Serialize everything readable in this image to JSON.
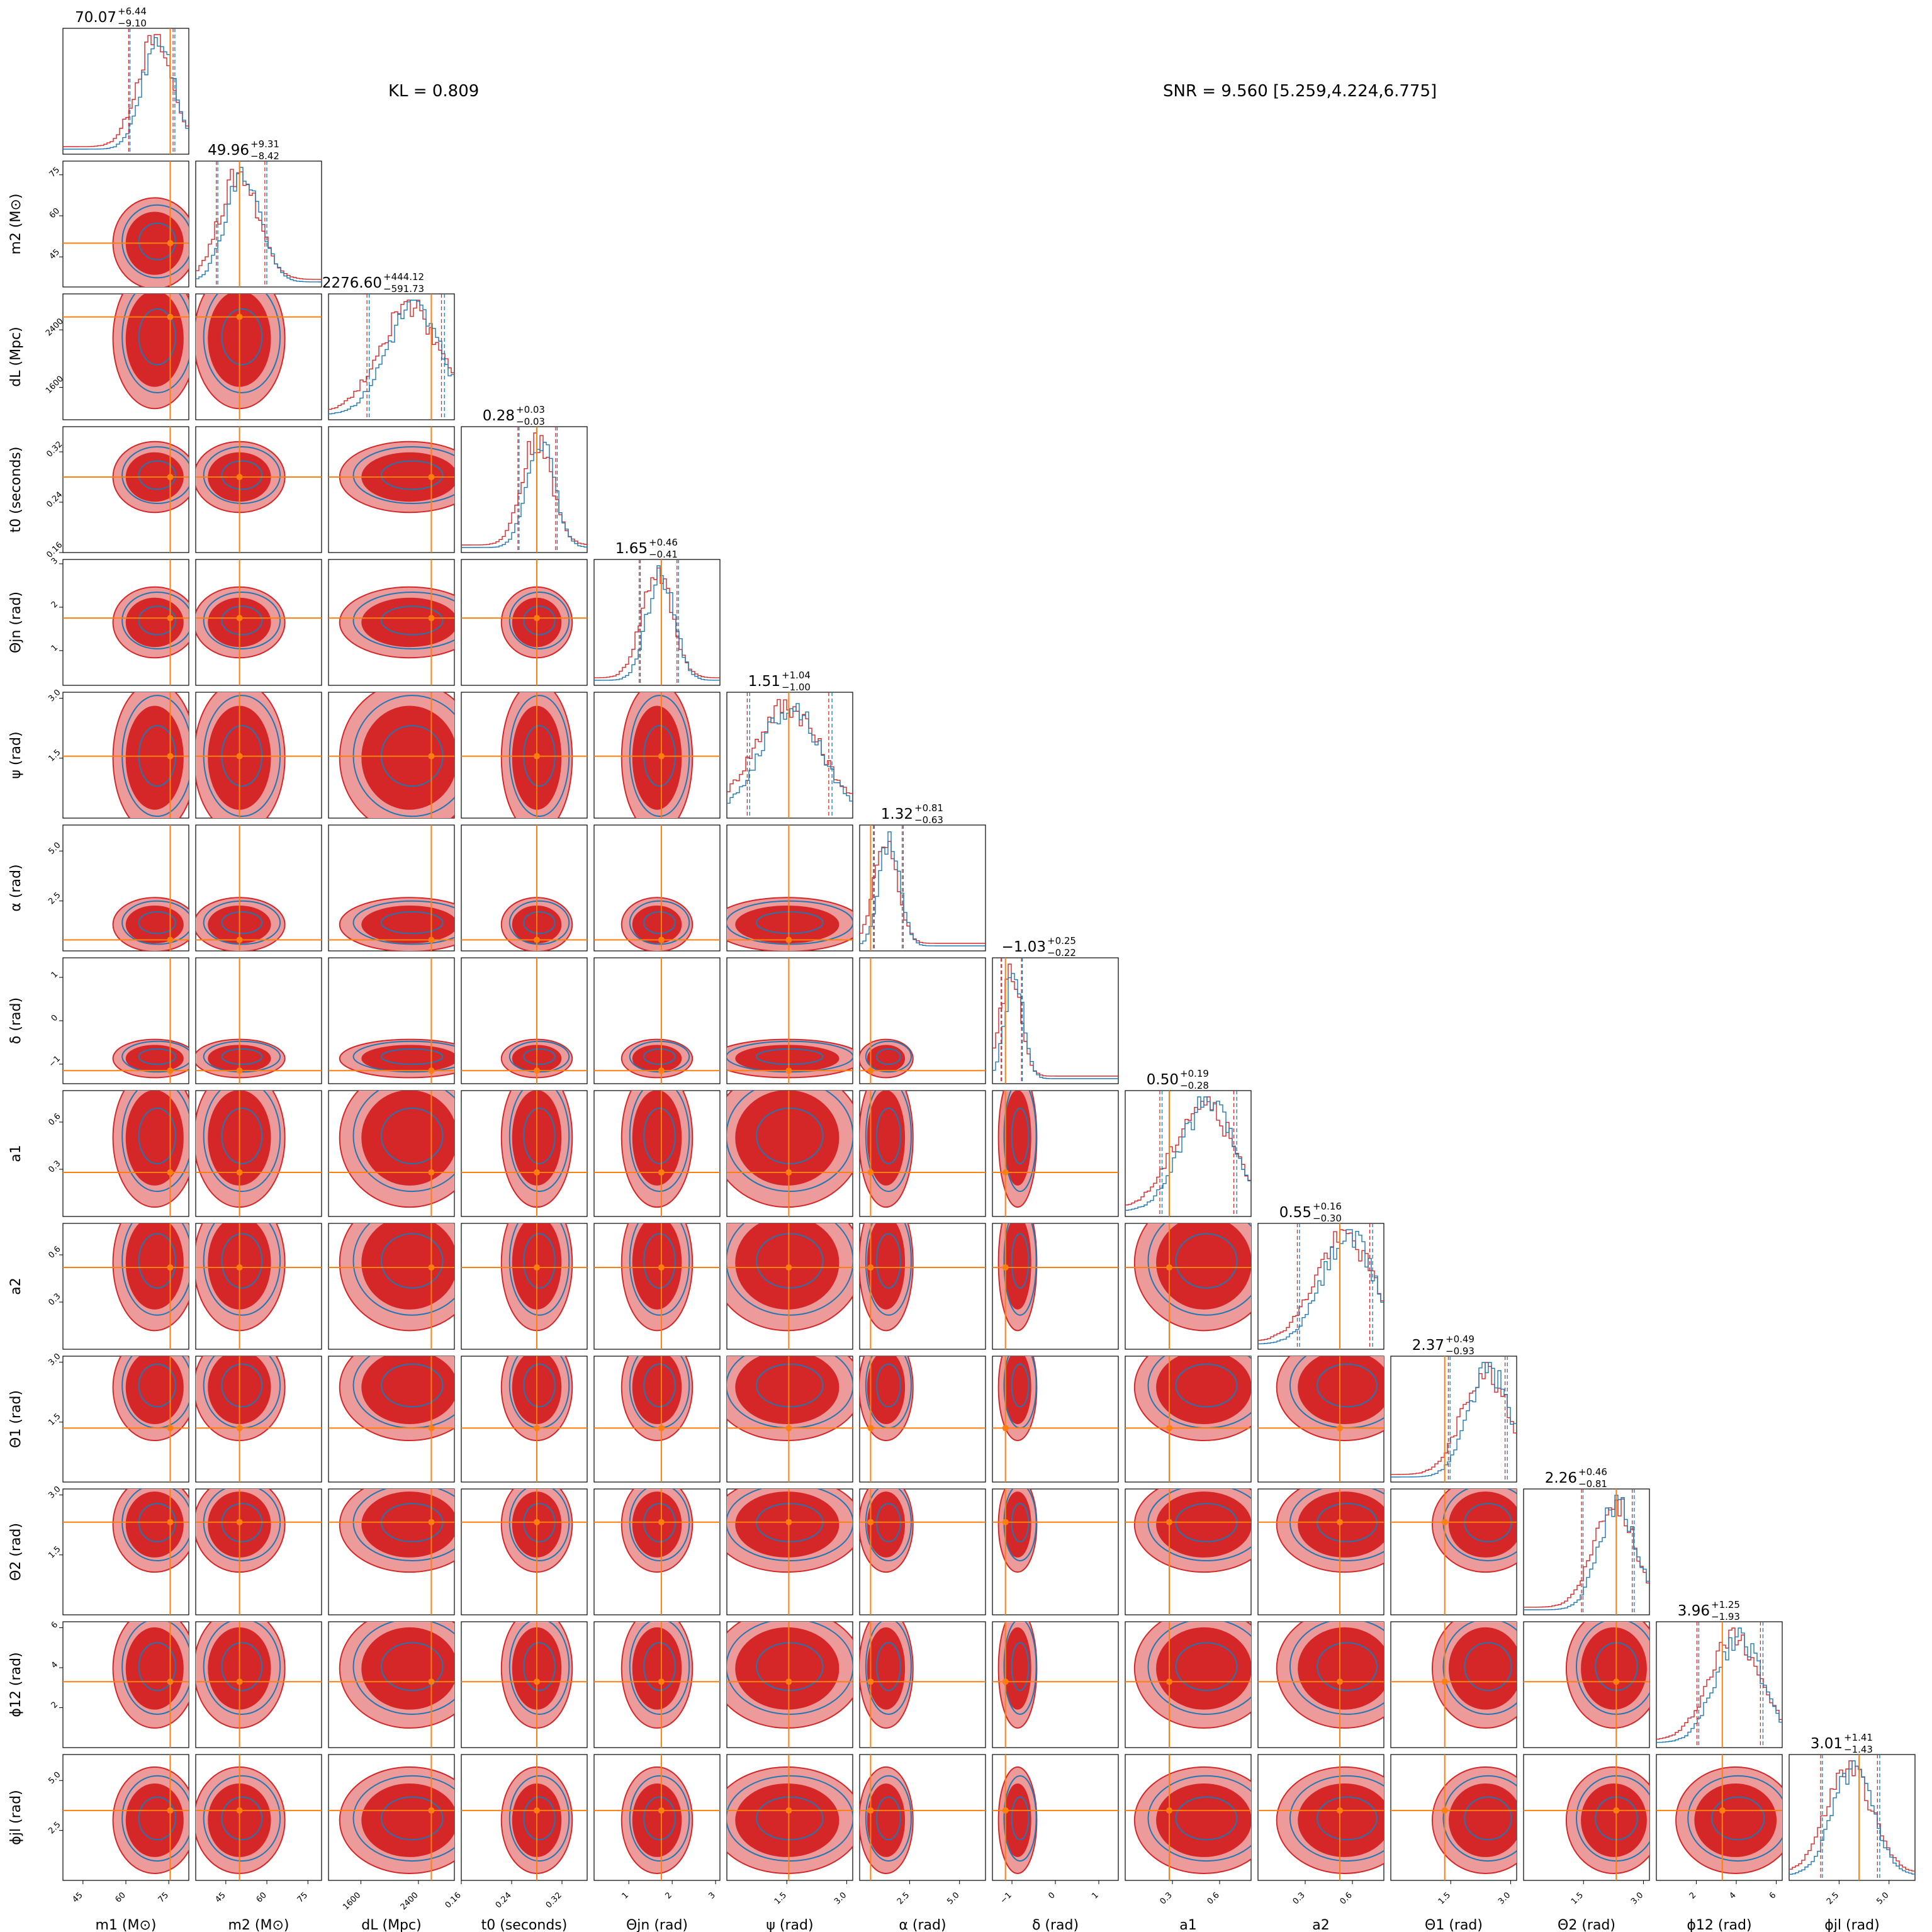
{
  "header": {
    "kl_text": "KL = 0.809",
    "snr_text": "SNR = 9.560 [5.259,4.224,6.775]"
  },
  "colors": {
    "red": "#d62728",
    "red_light": "#ec9a9a",
    "blue": "#1f77b4",
    "orange": "#ff7f0e"
  },
  "chart_data": {
    "type": "corner",
    "parameters": [
      {
        "label": "m1 (M⊙)",
        "injected": 75.5,
        "range": [
          38,
          82
        ],
        "ticks": [
          "45",
          "60",
          "75"
        ],
        "median": "70.07",
        "plus": "+6.44",
        "minus": "−9.10"
      },
      {
        "label": "m2 (M⊙)",
        "injected": 50.0,
        "range": [
          34,
          80
        ],
        "ticks": [
          "45",
          "60",
          "75"
        ],
        "median": "49.96",
        "plus": "+9.31",
        "minus": "−8.42"
      },
      {
        "label": "dL (Mpc)",
        "injected": 2580,
        "range": [
          1150,
          2900
        ],
        "ticks": [
          "1600",
          "2400"
        ],
        "median": "2276.60",
        "plus": "+444.12",
        "minus": "−591.73"
      },
      {
        "label": "t0 (seconds)",
        "injected": 0.28,
        "range": [
          0.16,
          0.36
        ],
        "ticks": [
          "0.16",
          "0.24",
          "0.32"
        ],
        "median": "0.28",
        "plus": "+0.03",
        "minus": "−0.03"
      },
      {
        "label": "Θjn (rad)",
        "injected": 1.75,
        "range": [
          0.2,
          3.1
        ],
        "ticks": [
          "1",
          "2",
          "3"
        ],
        "median": "1.65",
        "plus": "+0.46",
        "minus": "−0.41"
      },
      {
        "label": "ψ (rad)",
        "injected": 1.55,
        "range": [
          0.0,
          3.15
        ],
        "ticks": [
          "1.5",
          "3.0"
        ],
        "median": "1.51",
        "plus": "+1.04",
        "minus": "−1.00"
      },
      {
        "label": "α (rad)",
        "injected": 0.55,
        "range": [
          0.0,
          6.3
        ],
        "ticks": [
          "2.5",
          "5.0"
        ],
        "median": "1.32",
        "plus": "+0.81",
        "minus": "−0.63"
      },
      {
        "label": "δ (rad)",
        "injected": -1.15,
        "range": [
          -1.45,
          1.45
        ],
        "ticks": [
          "−1",
          "0",
          "1"
        ],
        "median": "−1.03",
        "plus": "+0.25",
        "minus": "−0.22"
      },
      {
        "label": "a1",
        "injected": 0.28,
        "range": [
          0.0,
          0.8
        ],
        "ticks": [
          "0.3",
          "0.6"
        ],
        "median": "0.50",
        "plus": "+0.19",
        "minus": "−0.28"
      },
      {
        "label": "a2",
        "injected": 0.52,
        "range": [
          0.0,
          0.8
        ],
        "ticks": [
          "0.3",
          "0.6"
        ],
        "median": "0.55",
        "plus": "+0.16",
        "minus": "−0.30"
      },
      {
        "label": "Θ1 (rad)",
        "injected": 1.35,
        "range": [
          0.0,
          3.15
        ],
        "ticks": [
          "1.5",
          "3.0"
        ],
        "median": "2.37",
        "plus": "+0.49",
        "minus": "−0.93"
      },
      {
        "label": "Θ2 (rad)",
        "injected": 2.32,
        "range": [
          0.0,
          3.15
        ],
        "ticks": [
          "1.5",
          "3.0"
        ],
        "median": "2.26",
        "plus": "+0.46",
        "minus": "−0.81"
      },
      {
        "label": "ϕ12 (rad)",
        "injected": 3.3,
        "range": [
          0.0,
          6.3
        ],
        "ticks": [
          "2",
          "4",
          "6"
        ],
        "median": "3.96",
        "plus": "+1.25",
        "minus": "−1.93"
      },
      {
        "label": "ϕjl (rad)",
        "injected": 3.5,
        "range": [
          0.0,
          6.3
        ],
        "ticks": [
          "2.5",
          "5.0"
        ],
        "median": "3.01",
        "plus": "+1.41",
        "minus": "−1.43"
      }
    ],
    "series": [
      {
        "name": "",
        "color": "#d62728"
      },
      {
        "name": "",
        "color": "#1f77b4"
      }
    ]
  }
}
